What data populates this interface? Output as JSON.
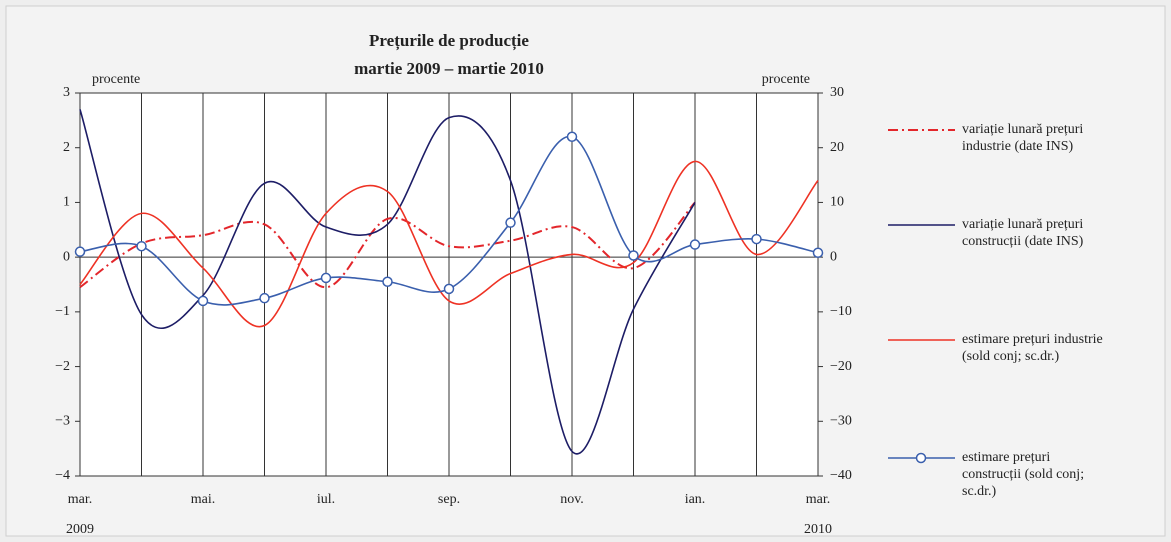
{
  "chart_data": {
    "type": "line",
    "title": "Prețurile de producție",
    "subtitle": "martie 2009 – martie 2010",
    "y_label": "procente",
    "y2_label": "procente",
    "categories": [
      "mar.",
      null,
      "mai.",
      null,
      "iul.",
      null,
      "sep.",
      null,
      "nov.",
      null,
      "ian.",
      null,
      "mar."
    ],
    "x_year_labels": [
      "2009",
      "2010"
    ],
    "ylim": [
      -4,
      3
    ],
    "yticks": [
      {
        "value": -4,
        "label": "−4"
      },
      {
        "value": -3,
        "label": "−3"
      },
      {
        "value": -2,
        "label": "−2"
      },
      {
        "value": -1,
        "label": "−1"
      },
      0,
      1,
      2,
      3
    ],
    "y2lim": [
      -40,
      30
    ],
    "y2ticks": [
      {
        "value": -40,
        "label": "−40"
      },
      {
        "value": -30,
        "label": "−30"
      },
      {
        "value": -20,
        "label": "−20"
      },
      {
        "value": -10,
        "label": "−10"
      },
      0,
      10,
      20,
      30
    ],
    "series": [
      {
        "name": "variație lunară prețuri industrie (date INS)",
        "color": "#e3262b",
        "style": "dashdot",
        "values": [
          -0.55,
          0.25,
          0.4,
          0.6,
          -0.55,
          0.7,
          0.2,
          0.3,
          0.55,
          -0.2,
          1.0,
          null,
          null
        ]
      },
      {
        "name": "variație lunară prețuri construcții (date INS)",
        "color": "#1d1d66",
        "style": "solid",
        "values": [
          2.7,
          -1.05,
          -0.7,
          1.35,
          0.55,
          0.6,
          2.55,
          1.4,
          -3.55,
          -0.95,
          1.0,
          null,
          null
        ]
      },
      {
        "name": "estimare prețuri industrie (sold conj; sc.dr.)",
        "color": "#ee3224",
        "style": "solid",
        "axis": "y2",
        "values": [
          -5,
          8,
          -2,
          -12.5,
          8,
          12,
          -8,
          -3,
          0.5,
          -1,
          17.5,
          0.5,
          14
        ]
      },
      {
        "name": "estimare prețuri construcții (sold conj; sc.dr.)",
        "color": "#3a5fad",
        "style": "marker",
        "axis": "y2",
        "values": [
          1,
          2,
          -8,
          -7.5,
          -3.8,
          -4.5,
          -5.8,
          6.3,
          22,
          0.3,
          2.3,
          3.3,
          0.8
        ]
      }
    ]
  }
}
